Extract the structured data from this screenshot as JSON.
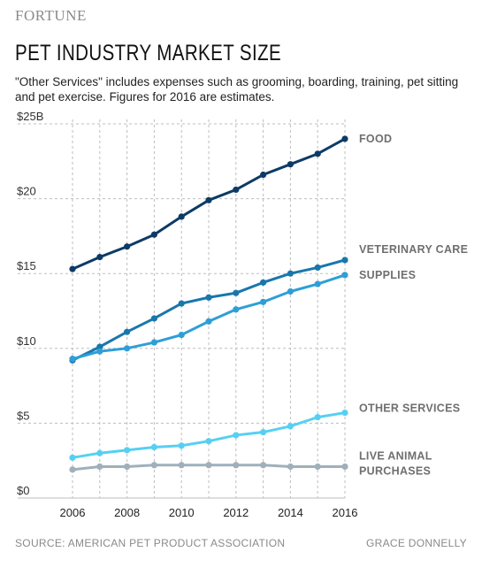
{
  "brand": "FORTUNE",
  "footer": {
    "source": "SOURCE: AMERICAN PET PRODUCT ASSOCIATION",
    "credit": "GRACE DONNELLY"
  },
  "chart_data": {
    "type": "line",
    "title": "PET INDUSTRY MARKET SIZE",
    "subtitle": "\"Other Services\" includes expenses such as grooming, boarding, training, pet sitting and pet exercise. Figures for 2016 are estimates.",
    "xlabel": "",
    "ylabel": "",
    "x": [
      2006,
      2007,
      2008,
      2009,
      2010,
      2011,
      2012,
      2013,
      2014,
      2015,
      2016
    ],
    "xticks": [
      2006,
      2008,
      2010,
      2012,
      2014,
      2016
    ],
    "xtick_labels": [
      "2006",
      "2008",
      "2010",
      "2012",
      "2014",
      "2016"
    ],
    "yticks": [
      0,
      5,
      10,
      15,
      20,
      25
    ],
    "ytick_labels": [
      "$0",
      "$5",
      "$10",
      "$15",
      "$20",
      "$25B"
    ],
    "xlim": [
      2006,
      2016
    ],
    "ylim": [
      0,
      25
    ],
    "grid": true,
    "legend": "direct labels at line ends (right)",
    "series": [
      {
        "name": "FOOD",
        "color": "#0d3b66",
        "values": [
          15.3,
          16.1,
          16.8,
          17.6,
          18.8,
          19.9,
          20.6,
          21.6,
          22.3,
          23.0,
          24.0
        ]
      },
      {
        "name": "VETERINARY CARE",
        "color": "#1877ad",
        "values": [
          9.2,
          10.1,
          11.1,
          12.0,
          13.0,
          13.4,
          13.7,
          14.4,
          15.0,
          15.4,
          15.9
        ]
      },
      {
        "name": "SUPPLIES",
        "color": "#2e9fd6",
        "values": [
          9.3,
          9.8,
          10.0,
          10.4,
          10.9,
          11.8,
          12.6,
          13.1,
          13.8,
          14.3,
          14.9
        ]
      },
      {
        "name": "OTHER SERVICES",
        "color": "#56d0f2",
        "values": [
          2.7,
          3.0,
          3.2,
          3.4,
          3.5,
          3.8,
          4.2,
          4.4,
          4.8,
          5.4,
          5.7
        ]
      },
      {
        "name": "LIVE ANIMAL PURCHASES",
        "color": "#9fb0ba",
        "values": [
          1.9,
          2.1,
          2.1,
          2.2,
          2.2,
          2.2,
          2.2,
          2.2,
          2.1,
          2.1,
          2.1
        ]
      }
    ],
    "series_label_lines": {
      "LIVE ANIMAL PURCHASES": [
        "LIVE ANIMAL",
        "PURCHASES"
      ]
    }
  }
}
